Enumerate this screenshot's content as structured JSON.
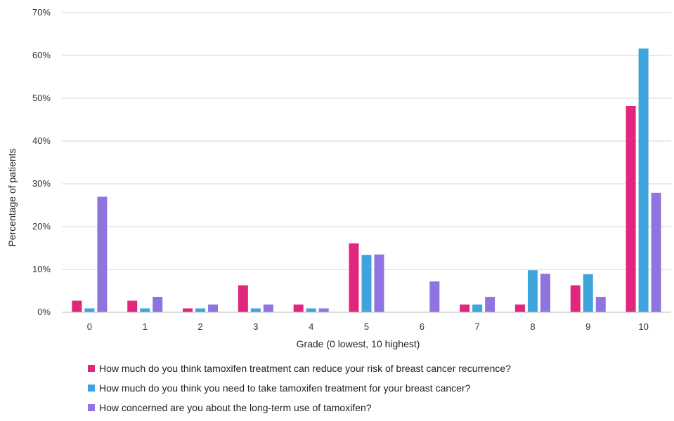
{
  "chart_data": {
    "type": "bar",
    "categories": [
      "0",
      "1",
      "2",
      "3",
      "4",
      "5",
      "6",
      "7",
      "8",
      "9",
      "10"
    ],
    "series": [
      {
        "name": "How much do you think tamoxifen treatment can reduce your risk of breast cancer recurrence?",
        "color": "#e0267d",
        "values": [
          2.7,
          2.7,
          0.9,
          6.3,
          1.8,
          16.1,
          0,
          1.8,
          1.8,
          6.3,
          48.2
        ]
      },
      {
        "name": "How much do you think you need to take tamoxifen treatment for your breast cancer?",
        "color": "#3fa4dc",
        "values": [
          0.9,
          0.9,
          0.9,
          0.9,
          0.9,
          13.4,
          0,
          1.8,
          9.8,
          8.9,
          61.6
        ]
      },
      {
        "name": "How concerned are you about the long-term use of tamoxifen?",
        "color": "#8f74df",
        "values": [
          27.0,
          3.6,
          1.8,
          1.8,
          0.9,
          13.5,
          7.2,
          3.6,
          9.0,
          3.6,
          27.9
        ]
      }
    ],
    "xlabel": "Grade (0 lowest, 10 highest)",
    "ylabel": "Percentage of patients",
    "ylim": [
      0,
      70
    ],
    "yticks": [
      "0%",
      "10%",
      "20%",
      "30%",
      "40%",
      "50%",
      "60%",
      "70%"
    ],
    "grid": true,
    "legend_position": "bottom"
  }
}
